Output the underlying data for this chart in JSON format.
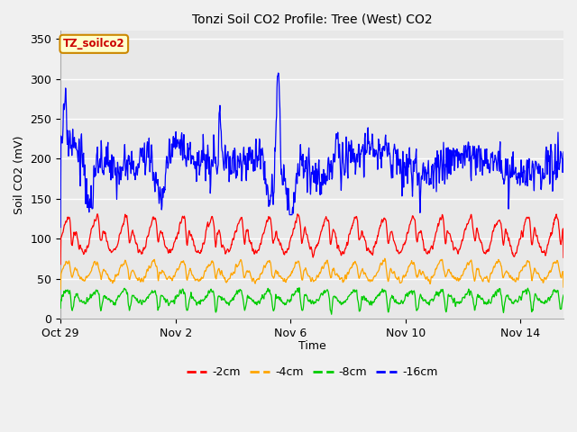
{
  "title": "Tonzi Soil CO2 Profile: Tree (West) CO2",
  "ylabel": "Soil CO2 (mV)",
  "xlabel": "Time",
  "label_box": "TZ_soilco2",
  "ylim": [
    0,
    360
  ],
  "yticks": [
    0,
    50,
    100,
    150,
    200,
    250,
    300,
    350
  ],
  "xtick_labels": [
    "Oct 29",
    "Nov 2",
    "Nov 6",
    "Nov 10",
    "Nov 14"
  ],
  "xtick_positions": [
    0,
    4,
    8,
    12,
    16
  ],
  "colors": {
    "2cm": "#ff0000",
    "4cm": "#ffa500",
    "8cm": "#00cc00",
    "16cm": "#0000ff"
  },
  "legend_labels": [
    "-2cm",
    "-4cm",
    "-8cm",
    "-16cm"
  ],
  "plot_bg": "#e8e8e8",
  "fig_bg": "#f0f0f0",
  "grid_color": "#ffffff",
  "n_points": 1200,
  "total_days": 17.5,
  "seed": 7
}
